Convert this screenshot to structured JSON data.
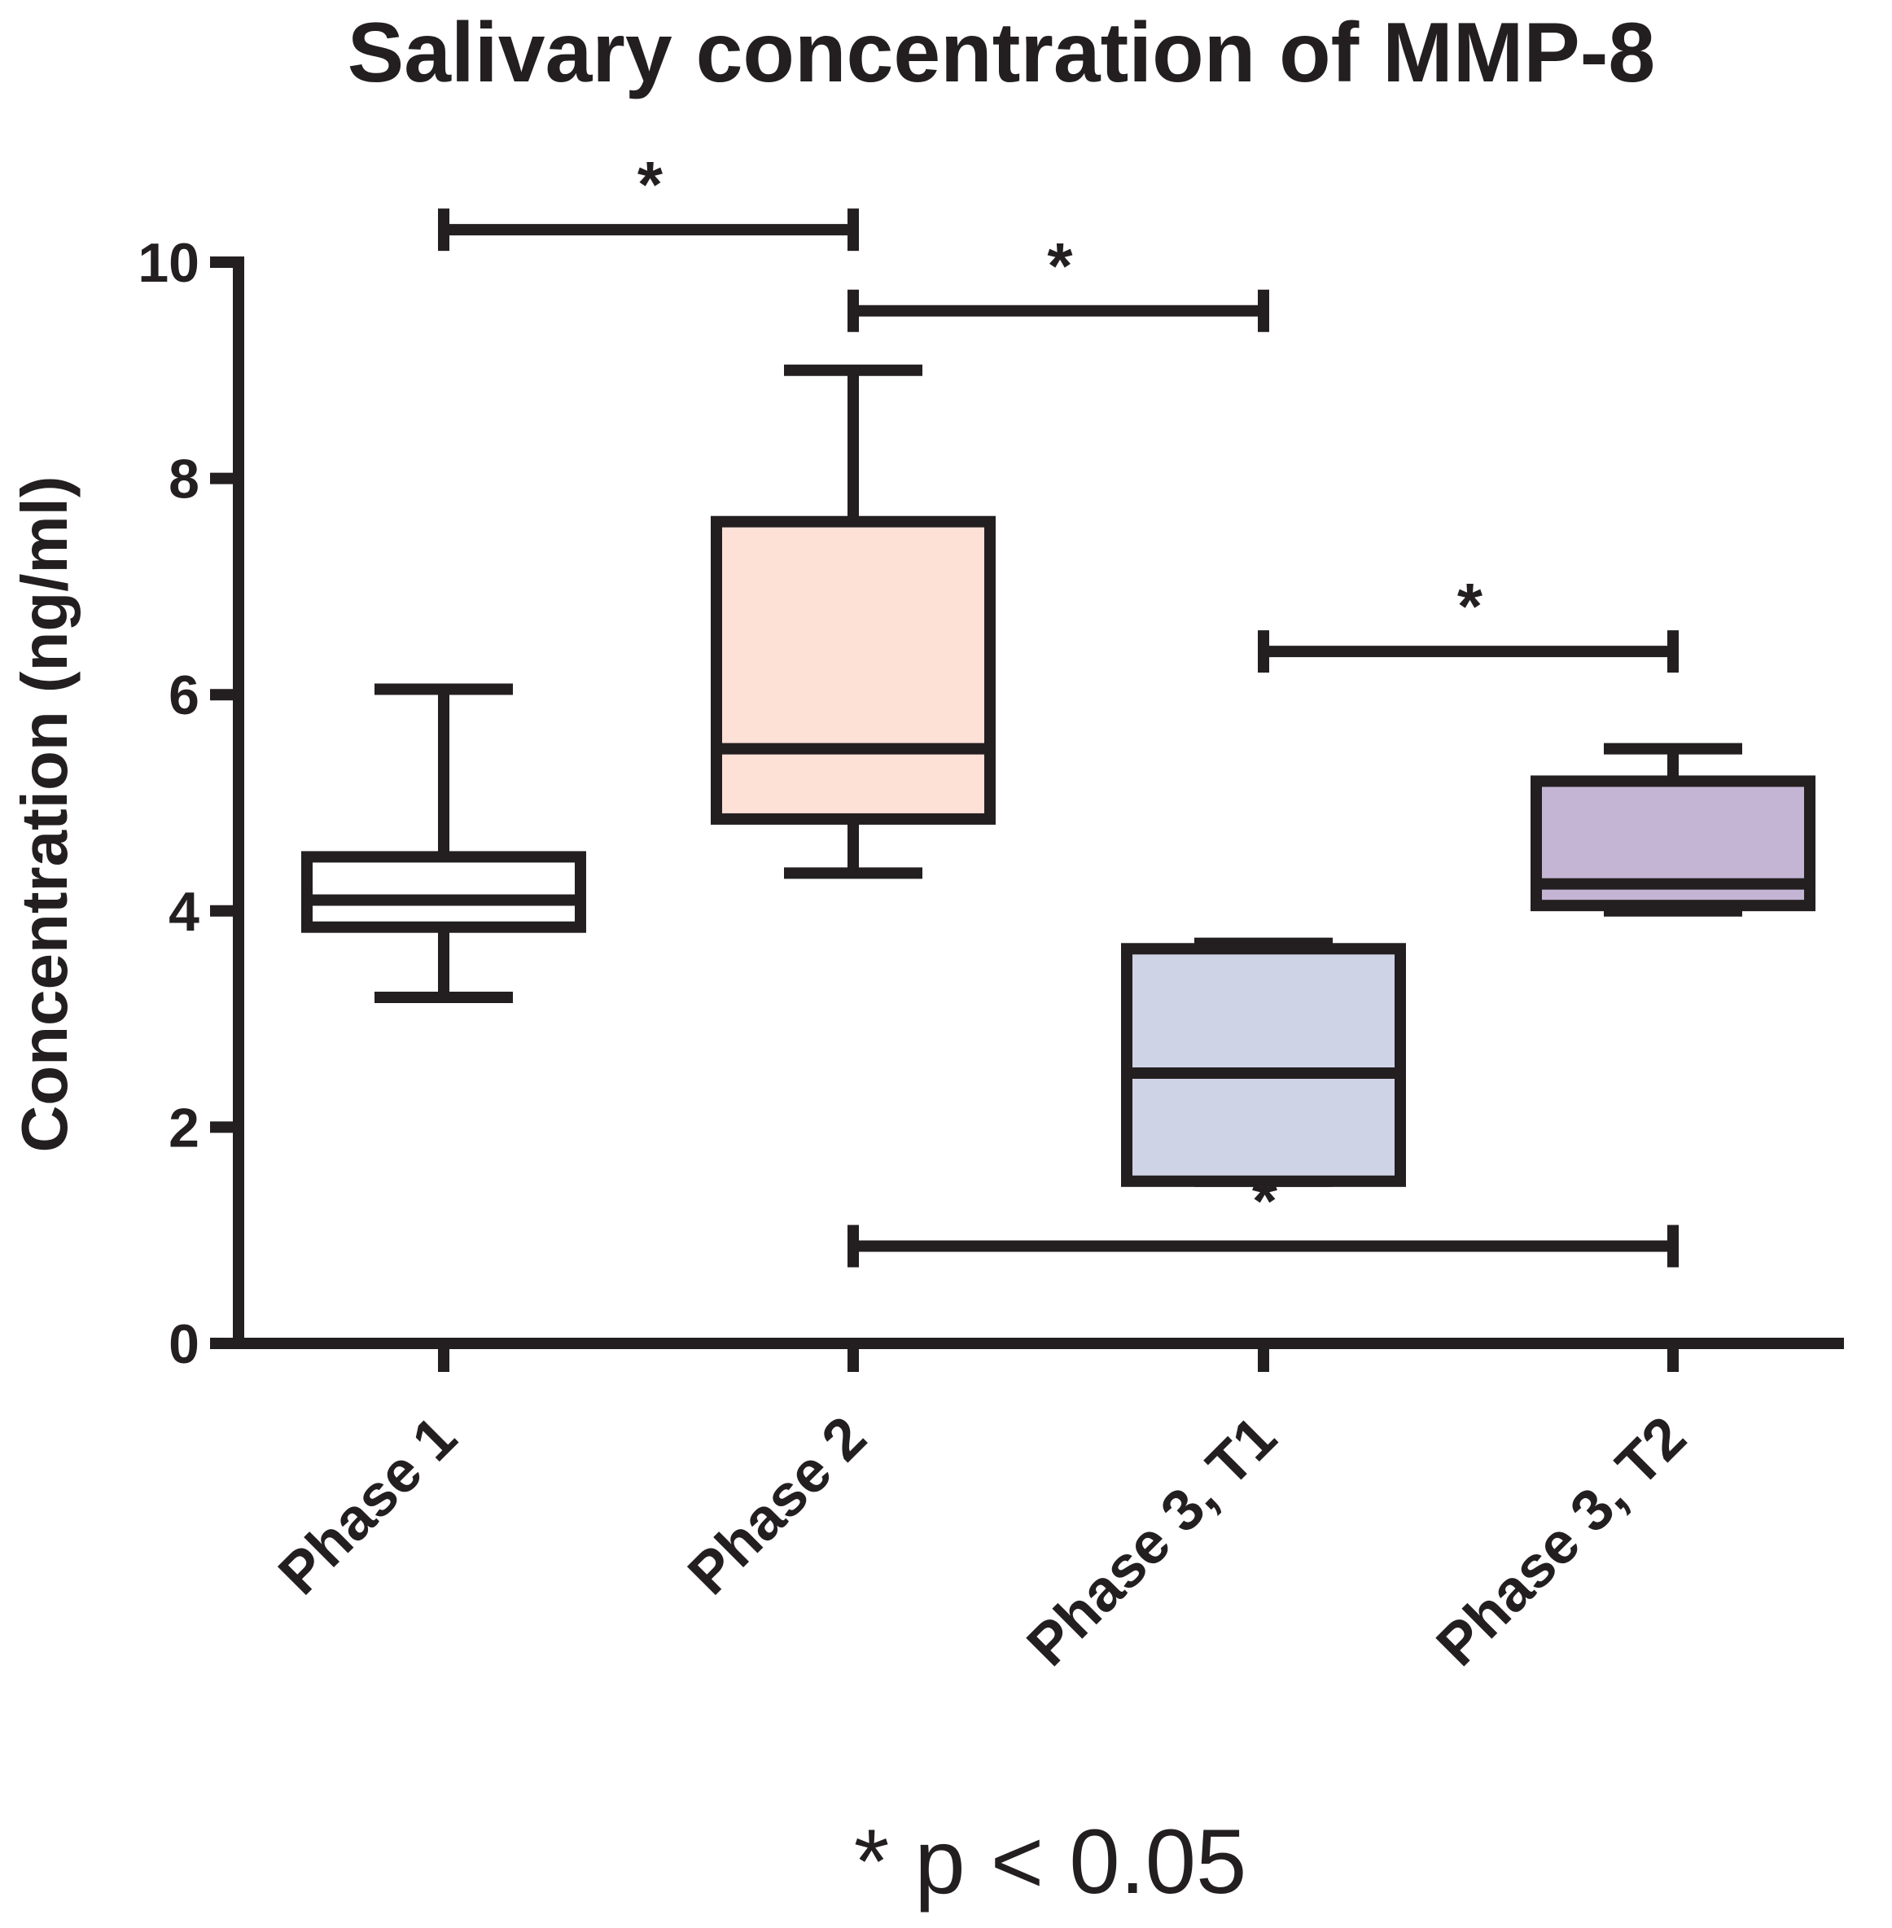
{
  "chart_data": {
    "type": "box",
    "title": "Salivary concentration of MMP-8",
    "xlabel": "",
    "ylabel": "Concentration (ng/ml)",
    "ylim": [
      0,
      10
    ],
    "yticks": [
      0,
      2,
      4,
      6,
      8,
      10
    ],
    "grid": false,
    "categories": [
      "Phase 1",
      "Phase 2",
      "Phase 3, T1",
      "Phase 3, T2"
    ],
    "boxes": [
      {
        "name": "Phase 1",
        "min": 3.2,
        "q1": 3.85,
        "median": 4.1,
        "q3": 4.5,
        "max": 6.05,
        "color": "#ffffff"
      },
      {
        "name": "Phase 2",
        "min": 4.35,
        "q1": 4.85,
        "median": 5.5,
        "q3": 7.6,
        "max": 9.0,
        "color": "#fde0d6"
      },
      {
        "name": "Phase 3, T1",
        "min": 1.5,
        "q1": 1.5,
        "median": 2.5,
        "q3": 3.65,
        "max": 3.7,
        "color": "#cfd3e6"
      },
      {
        "name": "Phase 3, T2",
        "min": 4.0,
        "q1": 4.05,
        "median": 4.25,
        "q3": 5.2,
        "max": 5.5,
        "color": "#c4b5d4"
      }
    ],
    "significance": [
      {
        "from": "Phase 1",
        "to": "Phase 2",
        "y": 10.3,
        "label": "*"
      },
      {
        "from": "Phase 2",
        "to": "Phase 3, T1",
        "y": 9.55,
        "label": "*"
      },
      {
        "from": "Phase 3, T1",
        "to": "Phase 3, T2",
        "y": 6.4,
        "label": "*"
      },
      {
        "from": "Phase 2",
        "to": "Phase 3, T2",
        "y": 0.9,
        "label": "*"
      }
    ],
    "footnote": "* p < 0.05"
  }
}
